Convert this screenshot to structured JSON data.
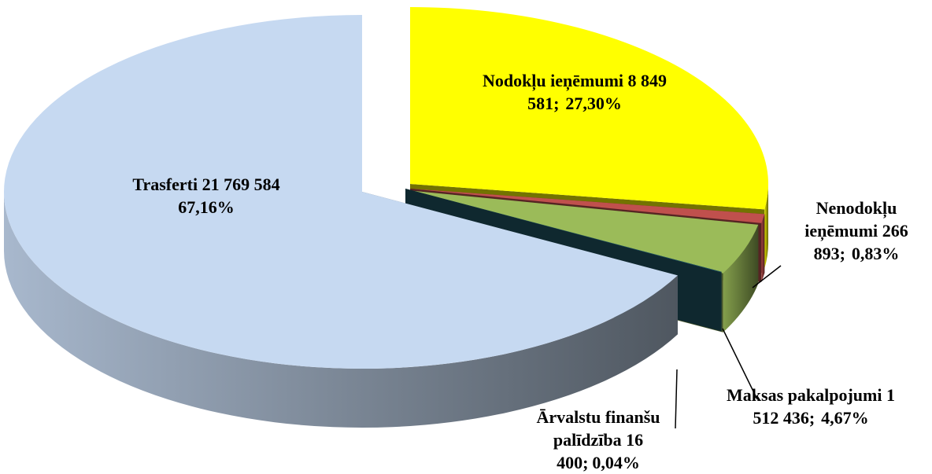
{
  "chart_data": {
    "type": "pie3d",
    "categories": [
      "Nodokļu ieņēmumi",
      "Nenodokļu ieņēmumi",
      "Maksas pakalpojumi",
      "Ārvalstu finanšu palīdzība",
      "Trasferti"
    ],
    "values": [
      8849581,
      266893,
      1512436,
      16400,
      21769584
    ],
    "value_labels": [
      "8 849 581",
      "266 893",
      "1 512 436",
      "16 400",
      "21 769 584"
    ],
    "percent_labels": [
      "27,30%",
      "0,83%",
      "4,67%",
      "0,04%",
      "67,16%"
    ],
    "separator": ";",
    "colors": [
      "#ffff00",
      "#c0504d",
      "#9bbb59",
      "#215968",
      "#c6d9f1"
    ]
  }
}
